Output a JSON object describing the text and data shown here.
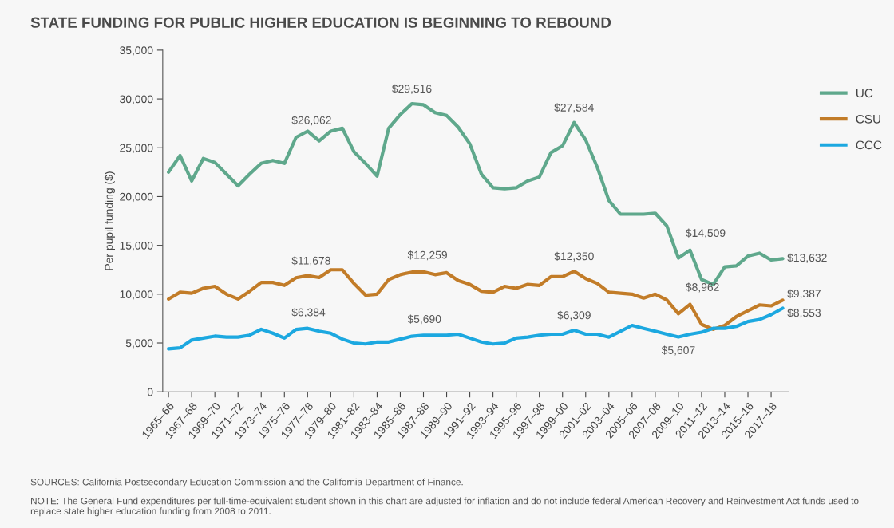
{
  "chart_data": {
    "type": "line",
    "title": "STATE FUNDING FOR PUBLIC HIGHER EDUCATION IS BEGINNING TO REBOUND",
    "ylabel": "Per pupil funding ($)",
    "categories": [
      "1965–66",
      null,
      "1967–68",
      null,
      "1969–70",
      null,
      "1971–72",
      null,
      "1973–74",
      null,
      "1975–76",
      null,
      "1977–78",
      null,
      "1979–80",
      null,
      "1981–82",
      null,
      "1983–84",
      null,
      "1985–86",
      null,
      "1987–88",
      null,
      "1989–90",
      null,
      "1991–92",
      null,
      "1993–94",
      null,
      "1995–96",
      null,
      "1997–98",
      null,
      "1999–00",
      null,
      "2001–02",
      null,
      "2003–04",
      null,
      "2005–06",
      null,
      "2007–08",
      null,
      "2009–10",
      null,
      "2011–12",
      null,
      "2013–14",
      null,
      "2015–16",
      null,
      "2017–18",
      null
    ],
    "series": [
      {
        "name": "UC",
        "color": "#5fa88c",
        "values": [
          22500,
          24200,
          21600,
          23900,
          23500,
          22300,
          21100,
          22300,
          23400,
          23700,
          23400,
          26062,
          26700,
          25700,
          26700,
          27000,
          24600,
          23400,
          22100,
          27000,
          28400,
          29516,
          29400,
          28600,
          28300,
          27100,
          25400,
          22300,
          20900,
          20800,
          20900,
          21600,
          22000,
          24500,
          25200,
          27584,
          25800,
          23000,
          19600,
          18200,
          18200,
          18200,
          18300,
          17000,
          13700,
          14509,
          11500,
          11000,
          12800,
          12900,
          13900,
          14200,
          13500,
          13632
        ],
        "value_labels": [
          null,
          null,
          null,
          null,
          null,
          null,
          null,
          null,
          null,
          null,
          null,
          "$26,062",
          null,
          null,
          null,
          null,
          null,
          null,
          null,
          null,
          null,
          "$29,516",
          null,
          null,
          null,
          null,
          null,
          null,
          null,
          null,
          null,
          null,
          null,
          null,
          null,
          "$27,584",
          null,
          null,
          null,
          null,
          null,
          null,
          null,
          null,
          null,
          "$14,509",
          null,
          null,
          null,
          null,
          null,
          null,
          null,
          "$13,632"
        ]
      },
      {
        "name": "CSU",
        "color": "#c27c28",
        "values": [
          9500,
          10200,
          10100,
          10600,
          10800,
          10000,
          9500,
          10300,
          11200,
          11200,
          10900,
          11678,
          11900,
          11700,
          12500,
          12500,
          11100,
          9900,
          10000,
          11500,
          12000,
          12259,
          12300,
          12000,
          12200,
          11400,
          11000,
          10300,
          10200,
          10800,
          10600,
          11000,
          10900,
          11800,
          11800,
          12350,
          11600,
          11100,
          10200,
          10100,
          10000,
          9600,
          10000,
          9400,
          8000,
          8962,
          6900,
          6400,
          6800,
          7700,
          8300,
          8900,
          8800,
          9387
        ],
        "value_labels": [
          null,
          null,
          null,
          null,
          null,
          null,
          null,
          null,
          null,
          null,
          null,
          "$11,678",
          null,
          null,
          null,
          null,
          null,
          null,
          null,
          null,
          null,
          "$12,259",
          null,
          null,
          null,
          null,
          null,
          null,
          null,
          null,
          null,
          null,
          null,
          null,
          null,
          "$12,350",
          null,
          null,
          null,
          null,
          null,
          null,
          null,
          null,
          null,
          "$8,962",
          null,
          null,
          null,
          null,
          null,
          null,
          null,
          "$9,387"
        ]
      },
      {
        "name": "CCC",
        "color": "#1ca8e0",
        "values": [
          4400,
          4500,
          5300,
          5500,
          5700,
          5600,
          5600,
          5800,
          6400,
          6000,
          5500,
          6384,
          6500,
          6200,
          6000,
          5400,
          5000,
          4900,
          5100,
          5100,
          5400,
          5690,
          5800,
          5800,
          5800,
          5900,
          5500,
          5100,
          4900,
          5000,
          5500,
          5600,
          5800,
          5900,
          5900,
          6309,
          5900,
          5900,
          5600,
          6200,
          6800,
          6500,
          6200,
          5900,
          5607,
          5900,
          6100,
          6500,
          6500,
          6700,
          7200,
          7400,
          7900,
          8553
        ],
        "value_labels": [
          null,
          null,
          null,
          null,
          null,
          null,
          null,
          null,
          null,
          null,
          null,
          "$6,384",
          null,
          null,
          null,
          null,
          null,
          null,
          null,
          null,
          null,
          "$5,690",
          null,
          null,
          null,
          null,
          null,
          null,
          null,
          null,
          null,
          null,
          null,
          null,
          null,
          "$6,309",
          null,
          null,
          null,
          null,
          null,
          null,
          null,
          null,
          "$5,607",
          null,
          null,
          null,
          null,
          null,
          null,
          null,
          null,
          "$8,553"
        ]
      }
    ],
    "ylim": [
      0,
      35000
    ],
    "yticks": [
      0,
      {
        "value": 5000,
        "label": "5,000"
      },
      {
        "value": 10000,
        "label": "10,000"
      },
      {
        "value": 15000,
        "label": "15,000"
      },
      {
        "value": 20000,
        "label": "20,000"
      },
      {
        "value": 25000,
        "label": "25,000"
      },
      {
        "value": 30000,
        "label": "30,000"
      },
      {
        "value": 35000,
        "label": "35,000"
      }
    ],
    "grid": false,
    "legend": "top right",
    "marker": "none",
    "line_style": "solid",
    "annotations": [
      "SOURCES: California Postsecondary Education Commission and the California Department of Finance.",
      "NOTE: The General Fund expenditures per full-time-equivalent student shown in this chart are adjusted for inflation and do not include federal American Recovery and Reinvestment Act funds used to replace state higher education funding from 2008 to 2011."
    ]
  }
}
